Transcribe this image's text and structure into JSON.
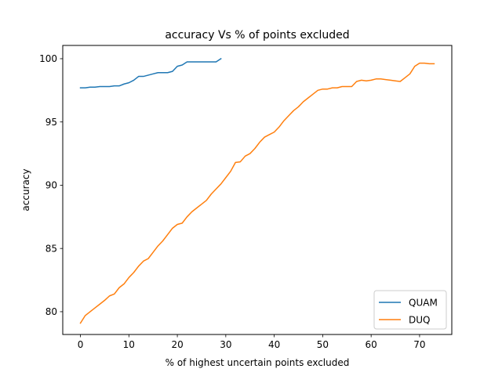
{
  "chart_data": {
    "type": "line",
    "title": "accuracy Vs % of points excluded",
    "xlabel": "% of highest uncertain points excluded",
    "ylabel": "accuracy",
    "xlim": [
      -3.65,
      76.65
    ],
    "ylim": [
      78.2,
      101.05
    ],
    "xticks": [
      0,
      10,
      20,
      30,
      40,
      50,
      60,
      70
    ],
    "yticks": [
      80,
      85,
      90,
      95,
      100
    ],
    "grid": false,
    "legend_position": "lower right",
    "series": [
      {
        "name": "QUAM",
        "color": "#1f77b4",
        "x": [
          0,
          1,
          2,
          3,
          4,
          5,
          6,
          7,
          8,
          9,
          10,
          11,
          12,
          13,
          14,
          15,
          16,
          17,
          18,
          19,
          20,
          21,
          22,
          23,
          24,
          25,
          26,
          27,
          28,
          29
        ],
        "y": [
          97.7,
          97.7,
          97.75,
          97.75,
          97.8,
          97.8,
          97.8,
          97.85,
          97.85,
          98.0,
          98.1,
          98.3,
          98.6,
          98.6,
          98.7,
          98.8,
          98.9,
          98.9,
          98.9,
          99.0,
          99.4,
          99.5,
          99.75,
          99.75,
          99.75,
          99.75,
          99.75,
          99.75,
          99.75,
          100.0
        ]
      },
      {
        "name": "DUQ",
        "color": "#ff7f0e",
        "x": [
          0,
          1,
          2,
          3,
          4,
          5,
          6,
          7,
          8,
          9,
          10,
          11,
          12,
          13,
          14,
          15,
          16,
          17,
          18,
          19,
          20,
          21,
          22,
          23,
          24,
          25,
          26,
          27,
          28,
          29,
          30,
          31,
          32,
          33,
          34,
          35,
          36,
          37,
          38,
          39,
          40,
          41,
          42,
          43,
          44,
          45,
          46,
          47,
          48,
          49,
          50,
          51,
          52,
          53,
          54,
          55,
          56,
          57,
          58,
          59,
          60,
          61,
          62,
          63,
          64,
          65,
          66,
          67,
          68,
          69,
          70,
          71,
          72,
          73
        ],
        "y": [
          79.1,
          79.7,
          80.0,
          80.3,
          80.6,
          80.9,
          81.25,
          81.4,
          81.9,
          82.2,
          82.7,
          83.1,
          83.6,
          84.0,
          84.2,
          84.7,
          85.2,
          85.6,
          86.1,
          86.6,
          86.9,
          87.0,
          87.5,
          87.9,
          88.2,
          88.5,
          88.8,
          89.3,
          89.7,
          90.1,
          90.6,
          91.1,
          91.8,
          91.85,
          92.3,
          92.5,
          92.9,
          93.4,
          93.8,
          94.0,
          94.2,
          94.6,
          95.1,
          95.5,
          95.9,
          96.2,
          96.6,
          96.9,
          97.2,
          97.5,
          97.6,
          97.6,
          97.7,
          97.7,
          97.8,
          97.8,
          97.8,
          98.2,
          98.3,
          98.25,
          98.3,
          98.4,
          98.4,
          98.35,
          98.3,
          98.25,
          98.2,
          98.5,
          98.8,
          99.4,
          99.65,
          99.65,
          99.6,
          99.6
        ]
      }
    ]
  }
}
